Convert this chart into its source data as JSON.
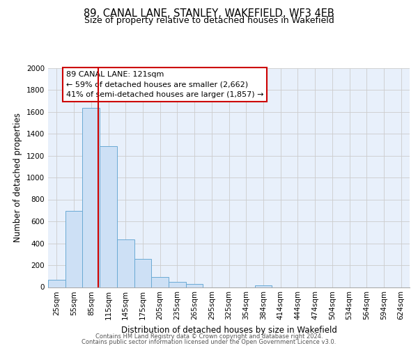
{
  "title": "89, CANAL LANE, STANLEY, WAKEFIELD, WF3 4EB",
  "subtitle": "Size of property relative to detached houses in Wakefield",
  "xlabel": "Distribution of detached houses by size in Wakefield",
  "ylabel": "Number of detached properties",
  "categories": [
    "25sqm",
    "55sqm",
    "85sqm",
    "115sqm",
    "145sqm",
    "175sqm",
    "205sqm",
    "235sqm",
    "265sqm",
    "295sqm",
    "325sqm",
    "354sqm",
    "384sqm",
    "414sqm",
    "444sqm",
    "474sqm",
    "504sqm",
    "534sqm",
    "564sqm",
    "594sqm",
    "624sqm"
  ],
  "values": [
    65,
    695,
    1635,
    1285,
    435,
    255,
    90,
    50,
    30,
    0,
    0,
    0,
    15,
    0,
    0,
    0,
    0,
    0,
    0,
    0,
    0
  ],
  "bar_color": "#cde0f5",
  "bar_edge_color": "#6aaad4",
  "annotation_line1": "89 CANAL LANE: 121sqm",
  "annotation_line2": "← 59% of detached houses are smaller (2,662)",
  "annotation_line3": "41% of semi-detached houses are larger (1,857) →",
  "ref_line_color": "#cc0000",
  "ref_line_x": 2.4,
  "box_edge_color": "#cc0000",
  "ylim": [
    0,
    2000
  ],
  "yticks": [
    0,
    200,
    400,
    600,
    800,
    1000,
    1200,
    1400,
    1600,
    1800,
    2000
  ],
  "grid_color": "#cccccc",
  "bg_color": "#e8f0fb",
  "footer_line1": "Contains HM Land Registry data © Crown copyright and database right 2024.",
  "footer_line2": "Contains public sector information licensed under the Open Government Licence v3.0.",
  "title_fontsize": 10.5,
  "subtitle_fontsize": 9,
  "tick_fontsize": 7.5,
  "ylabel_fontsize": 8.5,
  "xlabel_fontsize": 8.5,
  "annotation_fontsize": 8,
  "footer_fontsize": 6
}
